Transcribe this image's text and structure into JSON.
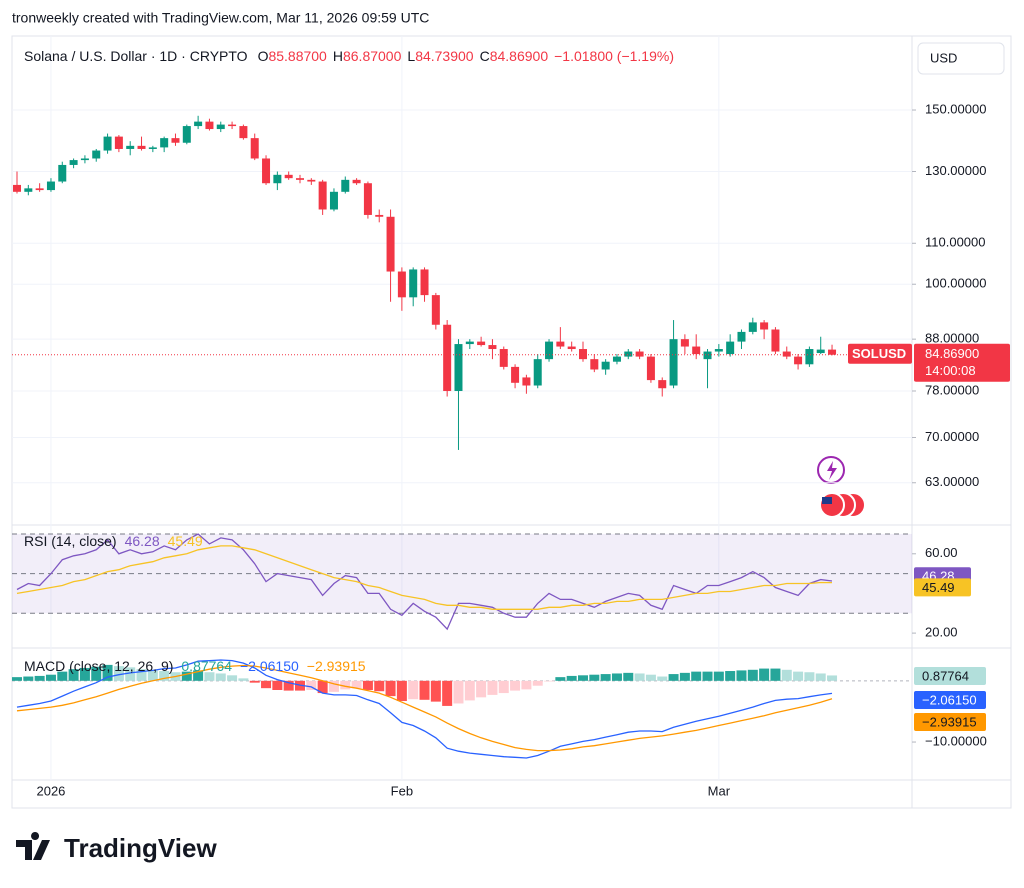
{
  "header": "tronweekly created with TradingView.com, Mar 11, 2026 09:59 UTC",
  "footer": {
    "brand": "TradingView"
  },
  "chart_data": [
    {
      "type": "candlestick",
      "title": "Solana / U.S. Dollar · 1D · CRYPTO",
      "currency": "USD",
      "log_scale": true,
      "up_color": "#089981",
      "down_color": "#f23645",
      "categories": [
        null,
        null,
        null,
        "2026",
        null,
        null,
        null,
        null,
        null,
        null,
        null,
        null,
        null,
        null,
        null,
        null,
        null,
        null,
        null,
        null,
        null,
        null,
        null,
        null,
        null,
        null,
        null,
        null,
        null,
        null,
        null,
        null,
        null,
        null,
        "Feb",
        null,
        null,
        null,
        null,
        null,
        null,
        null,
        null,
        null,
        null,
        null,
        null,
        null,
        null,
        null,
        null,
        null,
        null,
        null,
        null,
        null,
        null,
        null,
        null,
        null,
        null,
        null,
        "Mar",
        null,
        null,
        null,
        null,
        null,
        null,
        null,
        null,
        null,
        null
      ],
      "open": [
        126,
        124,
        125,
        124.5,
        127,
        132,
        133.5,
        134,
        136.5,
        141,
        137,
        138,
        137,
        137.5,
        140.5,
        139,
        144.5,
        146,
        143.5,
        145,
        144.5,
        140.5,
        134,
        126.5,
        129,
        128,
        127.5,
        127,
        119,
        124,
        127.5,
        126.5,
        117.5,
        117,
        103,
        97,
        103.5,
        97.5,
        91,
        78,
        87,
        87.5,
        86.8,
        86,
        82.5,
        80.5,
        79,
        84,
        87.5,
        86.5,
        86,
        84,
        82,
        83.5,
        84.5,
        85.5,
        84.5,
        80,
        79,
        88,
        86.5,
        84,
        85.5,
        85,
        87.5,
        89.5,
        91.5,
        90,
        85.5,
        84.5,
        83,
        85.2,
        85.887
      ],
      "high": [
        130,
        126,
        126.5,
        128,
        133,
        134,
        135,
        137,
        142,
        141.5,
        139.5,
        141,
        138,
        141,
        142,
        145,
        148,
        147,
        146,
        146,
        145,
        142,
        135,
        130,
        130,
        129,
        128,
        127.5,
        125,
        128.5,
        128,
        127,
        119,
        119,
        104,
        104,
        104,
        98,
        92,
        88,
        88,
        88.5,
        88,
        86.5,
        83,
        81,
        85,
        88,
        90.5,
        87.5,
        87.5,
        85,
        84,
        85,
        86,
        86,
        85,
        80.5,
        92,
        89,
        89,
        86,
        87,
        89,
        90,
        92.5,
        92,
        90.5,
        86.5,
        85,
        86.5,
        88.5,
        86.87
      ],
      "low": [
        123.5,
        123,
        124,
        124,
        126.5,
        131,
        132.5,
        133,
        135.5,
        136,
        135,
        136.5,
        136,
        136,
        138,
        138.5,
        143.5,
        143,
        142.5,
        143.5,
        140,
        133.5,
        126,
        124.5,
        127.5,
        126.5,
        126,
        117.5,
        118.5,
        123.5,
        126,
        116.5,
        115.5,
        96,
        94,
        95,
        96,
        90,
        77,
        68,
        86,
        86.5,
        84,
        82,
        78.5,
        77.5,
        78.5,
        83.5,
        86,
        85.5,
        83.5,
        81.5,
        81,
        83,
        84,
        84,
        79.5,
        77,
        78.5,
        85,
        84,
        78.5,
        84.5,
        84.5,
        86,
        89,
        88,
        85,
        84,
        82,
        82.5,
        85,
        84.739
      ],
      "close": [
        124,
        125,
        124.5,
        127,
        132,
        133.5,
        134,
        136.5,
        141,
        137,
        138,
        137,
        137.5,
        140.5,
        139,
        144.5,
        146,
        143.5,
        145,
        144.5,
        140.5,
        134,
        126.5,
        129,
        128,
        127.5,
        127,
        119,
        124,
        127.5,
        126.5,
        117.5,
        117,
        103,
        97,
        103.5,
        97.5,
        91,
        78,
        87,
        87.5,
        86.8,
        86,
        82.5,
        79.5,
        79,
        84,
        87.5,
        86.5,
        86,
        84,
        82,
        83.5,
        84.5,
        85.5,
        84.5,
        80,
        78.5,
        88,
        86.5,
        85,
        85.5,
        86,
        87.5,
        89.5,
        91.5,
        90,
        85.5,
        84.5,
        83,
        86,
        85.887,
        84.869
      ],
      "ylim": [
        57.5,
        178.2
      ],
      "yticks": [
        {
          "value": 150,
          "label": "150.00000"
        },
        {
          "value": 130,
          "label": "130.00000"
        },
        {
          "value": 110,
          "label": "110.00000"
        },
        {
          "value": 100,
          "label": "100.00000"
        },
        {
          "value": 88,
          "label": "88.00000"
        },
        {
          "value": 78,
          "label": "78.00000"
        },
        {
          "value": 70,
          "label": "70.00000"
        },
        {
          "value": 63,
          "label": "63.00000"
        }
      ],
      "ohlc_legend": [
        {
          "name": "O",
          "value": 85.887,
          "label": "85.88700"
        },
        {
          "name": "H",
          "value": 86.87,
          "label": "86.87000"
        },
        {
          "name": "L",
          "value": 84.739,
          "label": "84.73900"
        },
        {
          "name": "C",
          "value": 84.869,
          "label": "84.86900"
        }
      ],
      "change": {
        "value": -1.018,
        "label": "−1.01800 (−1.19%)"
      },
      "last_price": {
        "symbol": "SOLUSD",
        "value": 84.869,
        "label": "84.86900",
        "countdown": "14:00:08"
      }
    },
    {
      "type": "line",
      "title": "RSI (14, close)",
      "ylim": [
        14,
        72
      ],
      "yticks": [
        {
          "value": 60,
          "label": "60.00"
        },
        {
          "value": 20,
          "label": "20.00"
        }
      ],
      "bands": [
        70,
        50,
        30
      ],
      "band_color": "#7e57c2",
      "series": [
        {
          "color": "#7e57c2",
          "values": [
            42,
            45,
            44,
            50,
            57,
            59,
            60,
            62,
            67,
            60,
            62,
            60,
            61,
            64,
            62,
            67,
            70,
            65,
            68,
            67,
            62,
            55,
            46,
            50,
            49,
            48,
            47,
            39,
            45,
            49,
            48,
            40,
            40,
            32,
            29,
            35,
            31,
            28,
            22,
            35,
            35,
            34,
            33,
            30,
            28,
            28,
            35,
            40,
            37,
            37,
            35,
            33,
            36,
            38,
            40,
            39,
            34,
            32,
            44,
            42,
            40,
            44,
            44,
            46,
            48,
            51,
            48,
            43,
            41,
            39,
            45,
            47,
            46.28
          ]
        },
        {
          "color": "#f7c325",
          "values": [
            40,
            41,
            42,
            43,
            44,
            46,
            47,
            49,
            51,
            52,
            54,
            55,
            56,
            58,
            59,
            60,
            62,
            63,
            64,
            64,
            63,
            62,
            60,
            58,
            56,
            54,
            52,
            50,
            48,
            47,
            46,
            44,
            43,
            41,
            39,
            38,
            37,
            35,
            34,
            34,
            33,
            33,
            32,
            32,
            32,
            32,
            32,
            33,
            33,
            34,
            34,
            35,
            35,
            36,
            36,
            37,
            37,
            37,
            38,
            39,
            40,
            40,
            41,
            41,
            42,
            43,
            44,
            44,
            45,
            45,
            45,
            45.5,
            45.49
          ]
        }
      ]
    },
    {
      "type": "macd",
      "title": "MACD (close, 12, 26, 9)",
      "ylim": [
        -16.2,
        3.4
      ],
      "yticks": [
        {
          "value": -10,
          "label": "−10.00000"
        }
      ],
      "series": [
        {
          "kind": "histogram",
          "colors": [
            "#26a69a",
            "#b2dfdb",
            "#ff5252",
            "#ffcdd2"
          ],
          "last_label": "0.87764",
          "values": [
            0.6,
            0.7,
            0.8,
            1.0,
            1.5,
            1.9,
            2.1,
            2.3,
            2.6,
            2.4,
            2.2,
            1.9,
            1.7,
            1.6,
            1.4,
            1.5,
            1.7,
            1.4,
            1.2,
            0.9,
            0.4,
            -0.3,
            -1.2,
            -1.5,
            -1.6,
            -1.6,
            -1.5,
            -2.0,
            -1.8,
            -1.4,
            -1.2,
            -1.5,
            -1.7,
            -2.5,
            -3.3,
            -3.0,
            -3.1,
            -3.4,
            -4.1,
            -3.7,
            -3.2,
            -2.7,
            -2.3,
            -2.0,
            -1.6,
            -1.4,
            -0.8,
            -0.1,
            0.6,
            0.8,
            0.9,
            1.0,
            1.1,
            1.2,
            1.3,
            1.2,
            1.0,
            0.7,
            1.1,
            1.3,
            1.5,
            1.5,
            1.5,
            1.6,
            1.7,
            1.8,
            2.0,
            2.0,
            1.8,
            1.5,
            1.4,
            1.2,
            0.87764
          ]
        },
        {
          "kind": "line",
          "color": "#2962ff",
          "last_label": "−2.06150",
          "values": [
            -4.3,
            -4.0,
            -3.7,
            -3.3,
            -2.5,
            -1.7,
            -1.0,
            -0.3,
            0.6,
            1.0,
            1.3,
            1.5,
            1.7,
            2.0,
            2.1,
            2.6,
            3.2,
            3.3,
            3.4,
            3.3,
            2.9,
            2.1,
            0.9,
            0.2,
            -0.3,
            -0.7,
            -1.0,
            -2.0,
            -2.3,
            -2.3,
            -2.4,
            -3.1,
            -3.7,
            -5.2,
            -6.8,
            -7.3,
            -8.2,
            -9.3,
            -11.0,
            -11.5,
            -11.8,
            -12.0,
            -12.2,
            -12.4,
            -12.5,
            -12.6,
            -12.2,
            -11.5,
            -10.7,
            -10.3,
            -9.9,
            -9.6,
            -9.2,
            -8.8,
            -8.4,
            -8.2,
            -8.2,
            -8.3,
            -7.6,
            -7.1,
            -6.6,
            -6.2,
            -5.8,
            -5.3,
            -4.8,
            -4.3,
            -3.7,
            -3.2,
            -3.0,
            -2.9,
            -2.6,
            -2.3,
            -2.0615
          ]
        },
        {
          "kind": "line",
          "color": "#ff9800",
          "last_label": "−2.93915",
          "values": [
            -4.9,
            -4.7,
            -4.5,
            -4.3,
            -4.0,
            -3.6,
            -3.1,
            -2.6,
            -2.0,
            -1.4,
            -0.9,
            -0.4,
            0.0,
            0.4,
            0.7,
            1.1,
            1.5,
            1.9,
            2.2,
            2.4,
            2.5,
            2.4,
            2.1,
            1.7,
            1.3,
            0.9,
            0.5,
            0.0,
            -0.5,
            -0.9,
            -1.2,
            -1.6,
            -2.0,
            -2.7,
            -3.5,
            -4.3,
            -5.1,
            -5.9,
            -6.9,
            -7.8,
            -8.6,
            -9.3,
            -9.9,
            -10.4,
            -10.9,
            -11.2,
            -11.4,
            -11.4,
            -11.3,
            -11.1,
            -10.8,
            -10.6,
            -10.3,
            -10.0,
            -9.7,
            -9.4,
            -9.2,
            -9.0,
            -8.7,
            -8.4,
            -8.1,
            -7.7,
            -7.3,
            -6.9,
            -6.5,
            -6.1,
            -5.7,
            -5.2,
            -4.8,
            -4.4,
            -4.0,
            -3.5,
            -2.93915
          ]
        }
      ]
    }
  ]
}
